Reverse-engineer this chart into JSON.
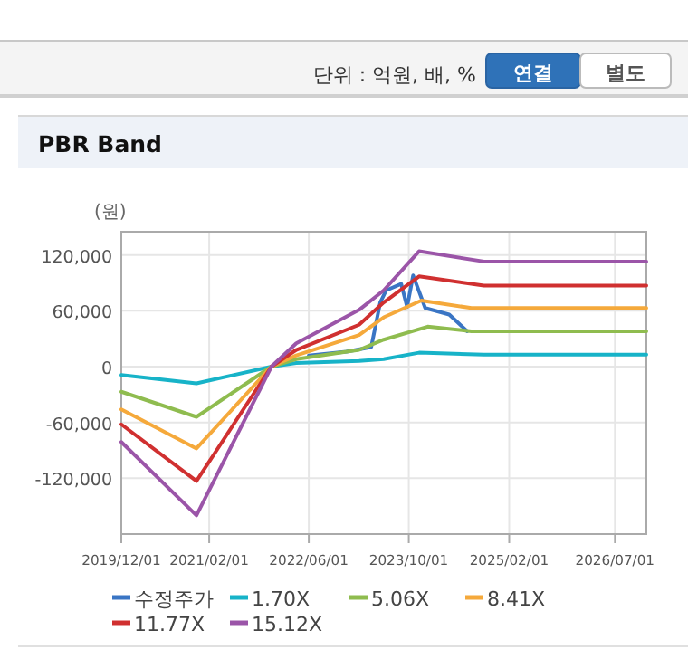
{
  "chart_data": {
    "type": "line",
    "title": "PBR Band",
    "ylabel": "(원)",
    "annotations": [
      "단위 : 억원, 배, %",
      "연결",
      "별도"
    ],
    "xlim": [
      "2019-12-01",
      "2026-12-01"
    ],
    "xticks": [
      {
        "value": "2019-12-01",
        "label": "2019/12/01"
      },
      {
        "value": "2021-02-01",
        "label": "2021/02/01"
      },
      {
        "value": "2022-06-01",
        "label": "2022/06/01"
      },
      {
        "value": "2023-10-01",
        "label": "2023/10/01"
      },
      {
        "value": "2025-02-01",
        "label": "2025/02/01"
      },
      {
        "value": "2026-07-01",
        "label": "2026/07/01"
      }
    ],
    "ylim": [
      -180000,
      145000
    ],
    "yticks": [
      {
        "value": -120000,
        "label": "-120,000"
      },
      {
        "value": -60000,
        "label": "-60,000"
      },
      {
        "value": 0,
        "label": "0"
      },
      {
        "value": 60000,
        "label": "60,000"
      },
      {
        "value": 120000,
        "label": "120,000"
      }
    ],
    "grid": true,
    "legend": "bottom",
    "marker": "none",
    "line_style": "solid",
    "series": [
      {
        "name": "수정주가",
        "color": "#3a75c4",
        "x": [
          "2022-06-01",
          "2022-12-01",
          "2023-04-01",
          "2023-05-15",
          "2023-06-13",
          "2023-08-25",
          "2023-09-23",
          "2023-10-22",
          "2023-12-20",
          "2024-04-15",
          "2024-07-12"
        ],
        "values": [
          12000,
          16000,
          21000,
          69000,
          82000,
          89000,
          64000,
          98000,
          63000,
          56000,
          38000
        ]
      },
      {
        "name": "1.70X",
        "color": "#17b3c8",
        "x": [
          "2019-12-01",
          "2020-12-01",
          "2021-12-01",
          "2022-04-01",
          "2023-02-01",
          "2023-06-01",
          "2023-11-20",
          "2024-10-01",
          "2026-12-01"
        ],
        "values": [
          -9000,
          -18000,
          0,
          4000,
          6000,
          8000,
          15000,
          13000,
          13000
        ]
      },
      {
        "name": "5.06X",
        "color": "#8fbc4f",
        "x": [
          "2019-12-01",
          "2020-12-01",
          "2021-12-01",
          "2022-04-01",
          "2023-02-01",
          "2023-06-01",
          "2024-01-01",
          "2024-08-01",
          "2026-12-01"
        ],
        "values": [
          -27000,
          -54000,
          0,
          8000,
          18000,
          29000,
          43000,
          38000,
          38000
        ]
      },
      {
        "name": "8.41X",
        "color": "#f5a93b",
        "x": [
          "2019-12-01",
          "2020-12-01",
          "2021-12-01",
          "2022-04-01",
          "2023-02-01",
          "2023-06-01",
          "2023-12-01",
          "2024-08-01",
          "2026-12-01"
        ],
        "values": [
          -46000,
          -88000,
          0,
          12000,
          34000,
          53000,
          71000,
          63000,
          63000
        ]
      },
      {
        "name": "11.77X",
        "color": "#d03030",
        "x": [
          "2019-12-01",
          "2020-12-01",
          "2021-12-01",
          "2022-04-01",
          "2023-02-01",
          "2023-06-01",
          "2023-11-20",
          "2024-10-01",
          "2026-12-01"
        ],
        "values": [
          -62000,
          -123000,
          0,
          18000,
          45000,
          69000,
          97000,
          87000,
          87000
        ]
      },
      {
        "name": "15.12X",
        "color": "#9b55a8",
        "x": [
          "2019-12-01",
          "2020-12-01",
          "2021-12-01",
          "2022-04-01",
          "2023-02-01",
          "2023-06-01",
          "2023-11-20",
          "2024-10-01",
          "2026-12-01"
        ],
        "values": [
          -81000,
          -160000,
          0,
          25000,
          61000,
          82000,
          124000,
          113000,
          113000
        ]
      }
    ]
  }
}
